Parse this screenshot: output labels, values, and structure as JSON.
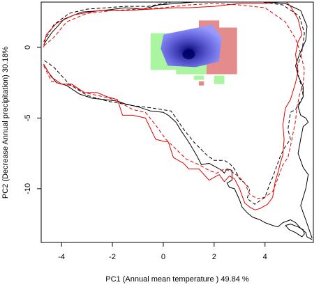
{
  "chart_data": {
    "type": "scatter",
    "title": "",
    "xlabel": "PC1 (Annual mean temperature ) 49.84 %",
    "ylabel": "PC2 (Decrease Annual precipitation) 30.18%",
    "xlim": [
      -4.8,
      5.9
    ],
    "ylim": [
      -13.8,
      3.2
    ],
    "x_ticks": [
      -4,
      -2,
      0,
      2,
      4
    ],
    "y_ticks": [
      0,
      -5,
      -10
    ],
    "grid": false,
    "legend": "none",
    "colors": {
      "black_contour": "#000000",
      "red_contour": "#e00000",
      "overlap_core": "#000066",
      "overlap_fill": "#7f7fff",
      "green_niche": "#aaf5a0",
      "red_niche": "#e48c8c"
    },
    "series": [
      {
        "style": "black solid",
        "x": [
          -4.7,
          -4.4,
          -3.9,
          -3.2,
          -2.4,
          -1.5,
          -0.8,
          -0.2,
          0.5,
          1.2,
          2.0,
          3.0,
          4.0,
          4.8,
          5.4,
          5.65,
          5.6,
          5.35,
          5.2,
          5.3,
          5.5,
          5.5,
          5.3,
          5.4,
          5.6,
          5.7,
          5.5,
          5.4,
          5.3,
          5.5,
          5.7,
          5.6,
          5.4,
          5.6,
          5.85
        ],
        "y": [
          0.2,
          1.0,
          2.0,
          2.5,
          2.6,
          2.8,
          2.7,
          3.0,
          3.1,
          3.2,
          3.2,
          3.2,
          3.2,
          3.1,
          2.6,
          1.5,
          0.5,
          -0.5,
          -1.3,
          -2.0,
          -2.8,
          -3.5,
          -4.2,
          -4.8,
          -5.0,
          -5.3,
          -5.6,
          -6.5,
          -7.5,
          -8.5,
          -9.0,
          -10.0,
          -11.2,
          -12.2,
          -13.5
        ]
      },
      {
        "style": "black solid",
        "x": [
          -4.7,
          -4.5,
          -4.2,
          -3.8,
          -3.3,
          -2.8,
          -2.3,
          -1.8,
          -1.5,
          -1.0,
          -0.5,
          0.0,
          0.2,
          0.5,
          0.7,
          1.0,
          1.3,
          1.5,
          1.8,
          2.0,
          2.3,
          2.4,
          2.5,
          2.7,
          2.7,
          2.5,
          2.6,
          2.8,
          2.9,
          3.0,
          3.1,
          3.3,
          3.5,
          3.8,
          4.0,
          4.3,
          4.5,
          4.7,
          5.0,
          5.2,
          5.4,
          5.6,
          5.65,
          5.85
        ],
        "y": [
          -1.2,
          -1.8,
          -2.5,
          -2.7,
          -3.3,
          -3.6,
          -3.7,
          -3.8,
          -4.0,
          -4.2,
          -4.5,
          -4.6,
          -4.8,
          -5.3,
          -5.9,
          -6.7,
          -7.6,
          -8.3,
          -8.2,
          -8.4,
          -8.7,
          -8.9,
          -8.6,
          -8.7,
          -9.4,
          -9.6,
          -9.9,
          -10.0,
          -10.4,
          -10.8,
          -11.3,
          -11.7,
          -12.0,
          -12.2,
          -12.4,
          -12.6,
          -12.7,
          -12.4,
          -12.2,
          -12.4,
          -12.8,
          -13.1,
          -13.4,
          -13.6
        ]
      },
      {
        "style": "black dashed",
        "x": [
          -4.7,
          -4.3,
          -3.7,
          -3.0,
          -2.2,
          -1.5,
          -0.6,
          0.3,
          1.0,
          1.6,
          2.3,
          3.0,
          3.9,
          4.7,
          5.35,
          5.55,
          5.45,
          5.25,
          5.35,
          5.45,
          5.5,
          5.35,
          5.2,
          5.0,
          4.9,
          5.0,
          4.8,
          4.6,
          4.4,
          4.3,
          4.2,
          4.0,
          3.6,
          3.3,
          3.4,
          3.2,
          3.0,
          2.8,
          2.6,
          2.4,
          2.0,
          1.7,
          1.2,
          0.8,
          0.5,
          0.3,
          -0.4,
          -1.3,
          -2.2,
          -3.0,
          -3.7,
          -4.3,
          -4.7
        ],
        "y": [
          0.4,
          1.6,
          2.4,
          2.7,
          2.8,
          2.9,
          2.9,
          3.2,
          3.3,
          3.3,
          3.3,
          3.3,
          3.2,
          3.0,
          2.2,
          1.0,
          -0.3,
          -1.5,
          -2.3,
          -2.8,
          -3.5,
          -3.9,
          -4.4,
          -4.6,
          -5.8,
          -6.5,
          -7.0,
          -7.7,
          -8.7,
          -9.2,
          -9.6,
          -10.6,
          -11.1,
          -10.7,
          -10.0,
          -9.6,
          -9.3,
          -8.6,
          -8.2,
          -8.0,
          -8.0,
          -7.6,
          -6.7,
          -5.8,
          -5.0,
          -4.5,
          -4.3,
          -4.1,
          -3.8,
          -3.4,
          -2.6,
          -1.4,
          -0.9
        ]
      },
      {
        "style": "red solid",
        "x": [
          -4.7,
          -4.4,
          -4.0,
          -3.6,
          -3.1,
          -2.6,
          -2.2,
          -1.8,
          -1.6,
          -1.2,
          -0.7,
          -0.3,
          -0.1,
          0.2,
          0.4,
          0.8,
          1.0,
          1.4,
          1.6,
          1.8,
          2.0,
          2.2,
          2.4,
          2.6,
          2.8,
          3.0,
          3.2,
          3.4,
          3.6,
          3.8,
          4.1,
          4.3,
          4.4,
          4.5,
          4.6,
          4.7,
          4.75,
          4.7,
          4.8,
          5.0,
          5.1,
          5.2,
          5.3,
          5.2,
          5.3,
          5.45,
          5.3,
          5.0,
          4.8,
          4.0,
          3.0,
          2.0,
          1.0,
          0.5,
          -0.5,
          -1.5,
          -2.5,
          -3.5,
          -4.2,
          -4.6,
          -4.7
        ],
        "y": [
          -1.2,
          -2.1,
          -2.6,
          -2.6,
          -3.2,
          -3.2,
          -3.5,
          -3.7,
          -4.8,
          -4.8,
          -5.0,
          -6.5,
          -6.6,
          -6.7,
          -7.8,
          -8.2,
          -8.6,
          -8.6,
          -9.0,
          -9.4,
          -9.2,
          -9.0,
          -9.5,
          -9.1,
          -9.3,
          -10.0,
          -11.0,
          -11.3,
          -11.5,
          -11.4,
          -11.1,
          -10.6,
          -9.5,
          -8.9,
          -8.2,
          -7.6,
          -6.5,
          -5.5,
          -4.3,
          -3.7,
          -3.1,
          -2.5,
          -1.7,
          -0.5,
          0.4,
          0.9,
          2.0,
          2.9,
          3.3,
          3.1,
          3.1,
          2.9,
          2.8,
          2.8,
          2.7,
          2.6,
          2.6,
          2.3,
          1.7,
          0.9,
          0.0
        ]
      },
      {
        "style": "red dashed",
        "x": [
          -4.7,
          -4.4,
          -4.0,
          -3.6,
          -3.1,
          -2.6,
          -2.1,
          -1.6,
          -1.2,
          -0.7,
          -0.3,
          0.1,
          0.5,
          0.9,
          1.4,
          1.8,
          2.1,
          2.4,
          2.7,
          3.0,
          3.2,
          3.4,
          3.7,
          4.0,
          4.3,
          4.5,
          4.7,
          4.9,
          5.0,
          5.1,
          5.2,
          5.25,
          5.35,
          5.5,
          5.55,
          5.4,
          5.2,
          4.8,
          4.0,
          3.0,
          2.0,
          1.0,
          0.0,
          -1.0,
          -2.0,
          -3.0,
          -3.8,
          -4.3,
          -4.7
        ],
        "y": [
          -1.3,
          -2.4,
          -2.6,
          -2.7,
          -3.2,
          -3.4,
          -3.6,
          -4.0,
          -4.4,
          -4.6,
          -5.5,
          -6.5,
          -7.2,
          -7.9,
          -8.3,
          -8.7,
          -8.9,
          -8.6,
          -8.8,
          -9.2,
          -9.6,
          -10.4,
          -10.7,
          -10.6,
          -10.2,
          -9.3,
          -8.3,
          -7.8,
          -7.0,
          -6.1,
          -5.2,
          -4.3,
          -3.4,
          -2.6,
          -1.6,
          -0.4,
          0.6,
          1.8,
          2.8,
          3.0,
          3.1,
          3.0,
          2.8,
          2.7,
          2.6,
          2.4,
          1.8,
          0.7,
          0.1
        ]
      },
      {
        "style": "black solid",
        "x": [
          4.8,
          5.0,
          5.3,
          5.5,
          5.55,
          5.45,
          5.2,
          4.95,
          4.8
        ],
        "y": [
          -12.6,
          -12.5,
          -12.7,
          -12.9,
          -13.2,
          -13.4,
          -13.1,
          -12.9,
          -12.6
        ]
      }
    ],
    "niche_density": {
      "green_niche": [
        {
          "x": [
            -0.5,
            0.8
          ],
          "y": [
            -1.6,
            1.0
          ]
        },
        {
          "x": [
            0.5,
            2.8
          ],
          "y": [
            -1.9,
            -1.0
          ]
        },
        {
          "x": [
            1.2,
            1.6
          ],
          "y": [
            -2.3,
            -2.0
          ]
        },
        {
          "x": [
            2.0,
            2.4
          ],
          "y": [
            -2.6,
            -2.0
          ]
        }
      ],
      "red_niche": [
        {
          "x": [
            1.4,
            2.2
          ],
          "y": [
            1.4,
            1.9
          ]
        },
        {
          "x": [
            1.7,
            2.9
          ],
          "y": [
            -1.9,
            1.4
          ]
        },
        {
          "x": [
            1.4,
            1.6
          ],
          "y": [
            -2.7,
            -2.4
          ]
        }
      ],
      "overlap": {
        "center": [
          1.0,
          -0.5
        ],
        "x": [
          -0.1,
          2.3
        ],
        "y": [
          -1.4,
          1.6
        ]
      }
    }
  }
}
